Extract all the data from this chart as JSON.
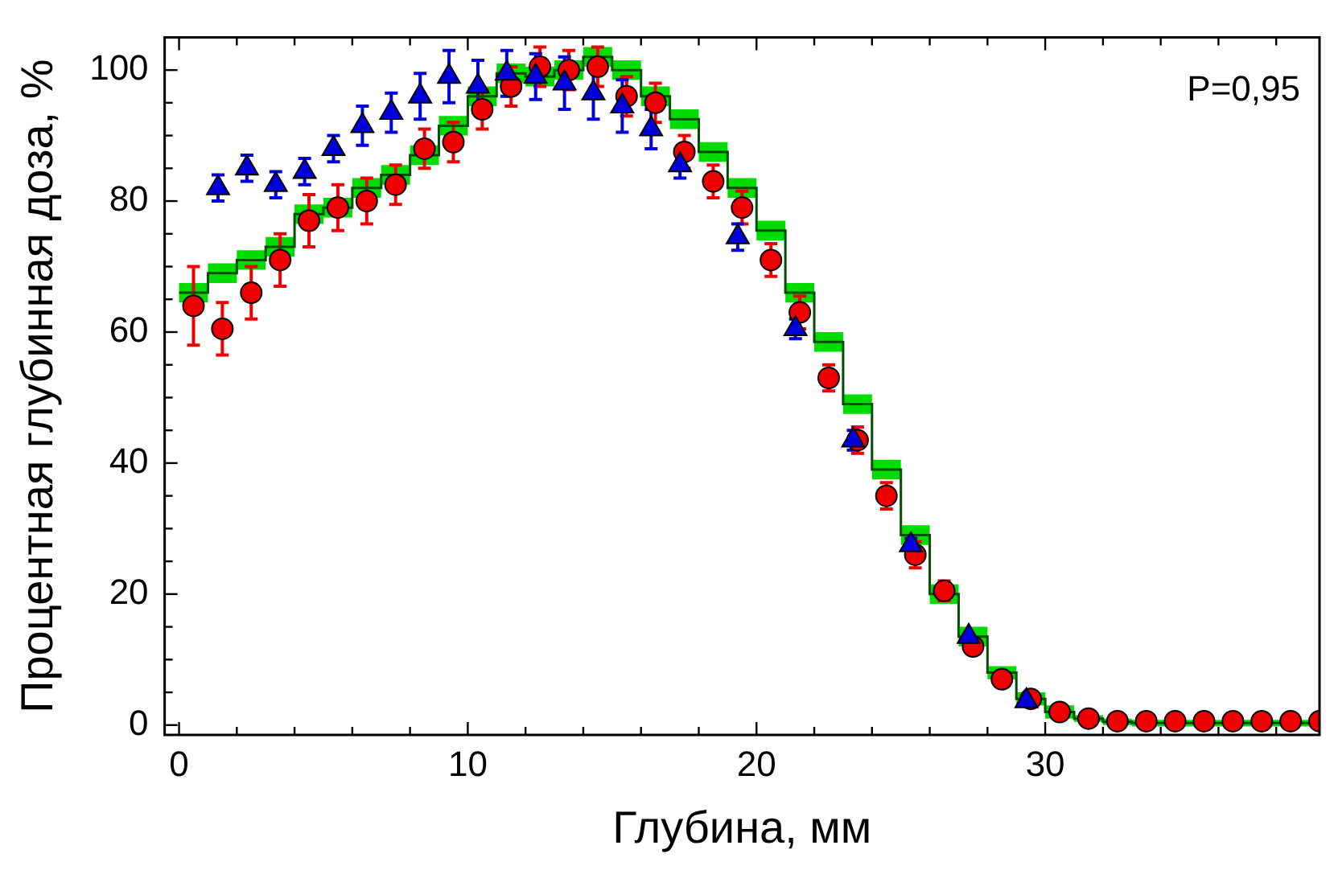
{
  "chart_data": {
    "type": "scatter",
    "xlabel": "Глубина, мм",
    "ylabel": "Процентная глубинная доза, %",
    "annotations": [
      "P=0,95"
    ],
    "xlim": [
      -0.5,
      39.5
    ],
    "ylim": [
      -1.5,
      105
    ],
    "xticks": [
      0,
      {
        "value": 2,
        "label": null
      },
      {
        "value": 4,
        "label": null
      },
      {
        "value": 6,
        "label": null
      },
      {
        "value": 8,
        "label": null
      },
      10,
      {
        "value": 12,
        "label": null
      },
      {
        "value": 14,
        "label": null
      },
      {
        "value": 16,
        "label": null
      },
      {
        "value": 18,
        "label": null
      },
      20,
      {
        "value": 22,
        "label": null
      },
      {
        "value": 24,
        "label": null
      },
      {
        "value": 26,
        "label": null
      },
      {
        "value": 28,
        "label": null
      },
      30,
      {
        "value": 32,
        "label": null
      },
      {
        "value": 34,
        "label": null
      },
      {
        "value": 36,
        "label": null
      },
      {
        "value": 38,
        "label": null
      }
    ],
    "yticks": [
      0,
      {
        "value": 5,
        "label": null
      },
      {
        "value": 10,
        "label": null
      },
      {
        "value": 15,
        "label": null
      },
      20,
      {
        "value": 25,
        "label": null
      },
      {
        "value": 30,
        "label": null
      },
      {
        "value": 35,
        "label": null
      },
      40,
      {
        "value": 45,
        "label": null
      },
      {
        "value": 50,
        "label": null
      },
      {
        "value": 55,
        "label": null
      },
      60,
      {
        "value": 65,
        "label": null
      },
      {
        "value": 70,
        "label": null
      },
      {
        "value": 75,
        "label": null
      },
      80,
      {
        "value": 85,
        "label": null
      },
      {
        "value": 90,
        "label": null
      },
      {
        "value": 95,
        "label": null
      },
      100
    ],
    "grid": false,
    "legend": false,
    "series": [
      {
        "type": "step",
        "color": "#004d00",
        "x": [
          0,
          1,
          2,
          3,
          4,
          5,
          6,
          7,
          8,
          9,
          10,
          11,
          12,
          13,
          14,
          15,
          16,
          17,
          18,
          19,
          20,
          21,
          22,
          23,
          24,
          25,
          26,
          27,
          28,
          29,
          30,
          31,
          32,
          33,
          34,
          35,
          36,
          37,
          38,
          39,
          39.5
        ],
        "values": [
          66,
          69,
          71,
          73,
          78,
          79,
          82,
          84,
          87,
          91.5,
          96,
          99.5,
          99,
          100,
          102,
          100,
          96,
          92.5,
          87.5,
          82,
          75.5,
          66,
          58.5,
          49,
          39,
          29,
          20,
          13.5,
          8,
          4,
          2,
          1,
          0.5,
          0.3,
          0.3,
          0.3,
          0.3,
          0.3,
          0.3,
          0.3,
          0.3
        ],
        "lower": [
          64.5,
          67.5,
          69.5,
          71.5,
          76.5,
          77.5,
          80.5,
          82.5,
          85.5,
          90,
          94.5,
          98,
          97.5,
          98.5,
          100.5,
          98.5,
          94.5,
          91,
          86,
          80.5,
          74,
          64.5,
          57,
          47.5,
          37.5,
          27.5,
          18.5,
          12,
          7,
          3,
          1,
          0.5,
          0,
          -0.2,
          -0.2,
          -0.2,
          -0.2,
          -0.2,
          -0.2,
          -0.2,
          -0.2
        ],
        "upper": [
          67.5,
          70.5,
          72.5,
          74.5,
          79.5,
          80.5,
          83.5,
          85.5,
          88.5,
          93,
          97.5,
          101,
          100.5,
          101.5,
          103.5,
          101.5,
          97.5,
          94,
          89,
          83.5,
          77,
          67.5,
          60,
          50.5,
          40.5,
          30.5,
          21.5,
          15,
          9,
          5,
          3,
          1.5,
          1,
          0.8,
          0.8,
          0.8,
          0.8,
          0.8,
          0.8,
          0.8,
          0.8
        ],
        "marker": "none"
      },
      {
        "type": "scatter",
        "color": "#ee0000",
        "marker": "circle",
        "x": [
          0.5,
          1.5,
          2.5,
          3.5,
          4.5,
          5.5,
          6.5,
          7.5,
          8.5,
          9.5,
          10.5,
          11.5,
          12.5,
          13.5,
          14.5,
          15.5,
          16.5,
          17.5,
          18.5,
          19.5,
          20.5,
          21.5,
          22.5,
          23.5,
          24.5,
          25.5,
          26.5,
          27.5,
          28.5,
          29.5,
          30.5,
          31.5,
          32.5,
          33.5,
          34.5,
          35.5,
          36.5,
          37.5,
          38.5,
          39.5
        ],
        "values": [
          64,
          60.5,
          66,
          71,
          77,
          79,
          80,
          82.5,
          88,
          89,
          94,
          97.5,
          100.5,
          100,
          100.5,
          96,
          95,
          87.5,
          83,
          79,
          71,
          63,
          53,
          43.5,
          35,
          26,
          20.5,
          12,
          7,
          4,
          2,
          1,
          0.6,
          0.6,
          0.6,
          0.6,
          0.6,
          0.6,
          0.6,
          0.6
        ],
        "errors": [
          6,
          4,
          4,
          4,
          4,
          3.5,
          3.5,
          3,
          3,
          3,
          3,
          3,
          3,
          3,
          3,
          3,
          3,
          2.5,
          2.5,
          2.5,
          2.5,
          2.5,
          2,
          2,
          2,
          2,
          1.5,
          null,
          null,
          null,
          null,
          null,
          null,
          null,
          null,
          null,
          null,
          null,
          null,
          null
        ]
      },
      {
        "type": "scatter",
        "color": "#0000dd",
        "marker": "triangle",
        "x": [
          1.35,
          2.35,
          3.35,
          4.35,
          5.35,
          6.35,
          7.35,
          8.35,
          9.35,
          10.35,
          11.35,
          12.35,
          13.35,
          14.35,
          15.35,
          16.35,
          17.35,
          19.35,
          21.35,
          23.35,
          25.35,
          27.35,
          29.35
        ],
        "values": [
          82,
          85,
          82.5,
          84.5,
          88,
          91.5,
          93.5,
          96,
          99,
          97.5,
          99.5,
          99,
          98,
          96.5,
          94.5,
          91,
          85.5,
          74.5,
          60.5,
          43.5,
          27.5,
          13.5,
          3.7
        ],
        "errors": [
          2,
          2,
          2,
          2,
          2,
          3,
          3,
          3.5,
          4,
          4,
          3.5,
          3.5,
          4,
          4,
          4,
          3,
          2,
          2,
          1.5,
          1.5,
          1,
          null,
          null
        ]
      }
    ]
  }
}
